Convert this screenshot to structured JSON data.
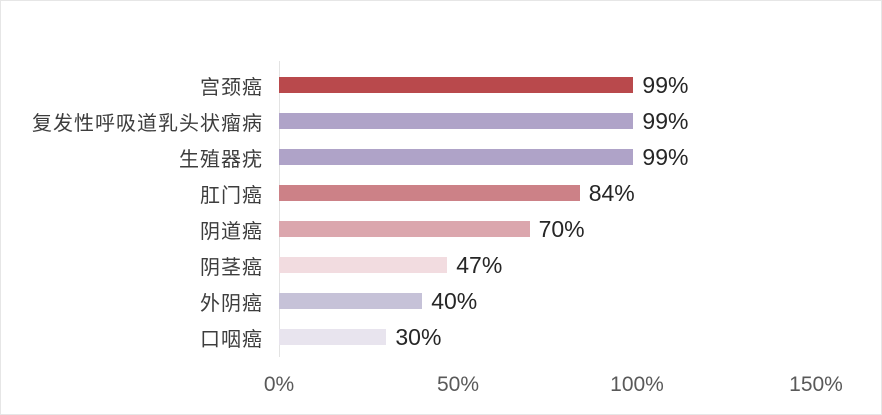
{
  "chart_data": {
    "type": "bar",
    "orientation": "horizontal",
    "title": "",
    "xlabel": "",
    "ylabel": "",
    "categories": [
      "宫颈癌",
      "复发性呼吸道乳头状瘤病",
      "生殖器疣",
      "肛门癌",
      "阴道癌",
      "阴茎癌",
      "外阴癌",
      "口咽癌"
    ],
    "values": [
      99,
      99,
      99,
      84,
      70,
      47,
      40,
      30
    ],
    "value_labels": [
      "99%",
      "99%",
      "99%",
      "84%",
      "70%",
      "47%",
      "40%",
      "30%"
    ],
    "bar_colors": [
      "#b9494c",
      "#afa3c8",
      "#afa3c8",
      "#cc8187",
      "#dba6ad",
      "#f2dce0",
      "#c6c2d8",
      "#e8e4ee"
    ],
    "x_ticks": [
      "0%",
      "50%",
      "100%",
      "150%"
    ],
    "xlim": [
      0,
      150
    ],
    "grid": false,
    "legend": false
  },
  "colors": {
    "axis_line": "#e3e3e3",
    "category_text": "#3d3d3d",
    "value_text": "#262626",
    "tick_text": "#595959",
    "frame_border": "#e6e6e6",
    "background": "#ffffff"
  }
}
